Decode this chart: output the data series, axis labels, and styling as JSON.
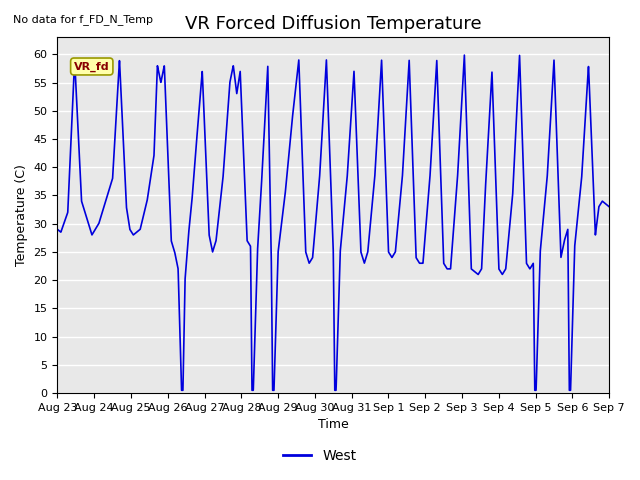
{
  "title": "VR Forced Diffusion Temperature",
  "top_left_text": "No data for f_FD_N_Temp",
  "xlabel": "Time",
  "ylabel": "Temperature (C)",
  "ylim": [
    0,
    63
  ],
  "yticks": [
    0,
    5,
    10,
    15,
    20,
    25,
    30,
    35,
    40,
    45,
    50,
    55,
    60
  ],
  "line_color": "#0000dd",
  "line_width": 1.2,
  "bg_color": "#e8e8e8",
  "legend_label": "West",
  "vr_fd_label": "VR_fd",
  "vr_fd_bg": "#ffffaa",
  "vr_fd_text_color": "#880000",
  "x_tick_labels": [
    "Aug 23",
    "Aug 24",
    "Aug 25",
    "Aug 26",
    "Aug 27",
    "Aug 28",
    "Aug 29",
    "Aug 30",
    "Aug 31",
    "Sep 1",
    "Sep 2",
    "Sep 3",
    "Sep 4",
    "Sep 5",
    "Sep 6",
    "Sep 7"
  ],
  "title_fontsize": 13,
  "label_fontsize": 9,
  "tick_fontsize": 8
}
